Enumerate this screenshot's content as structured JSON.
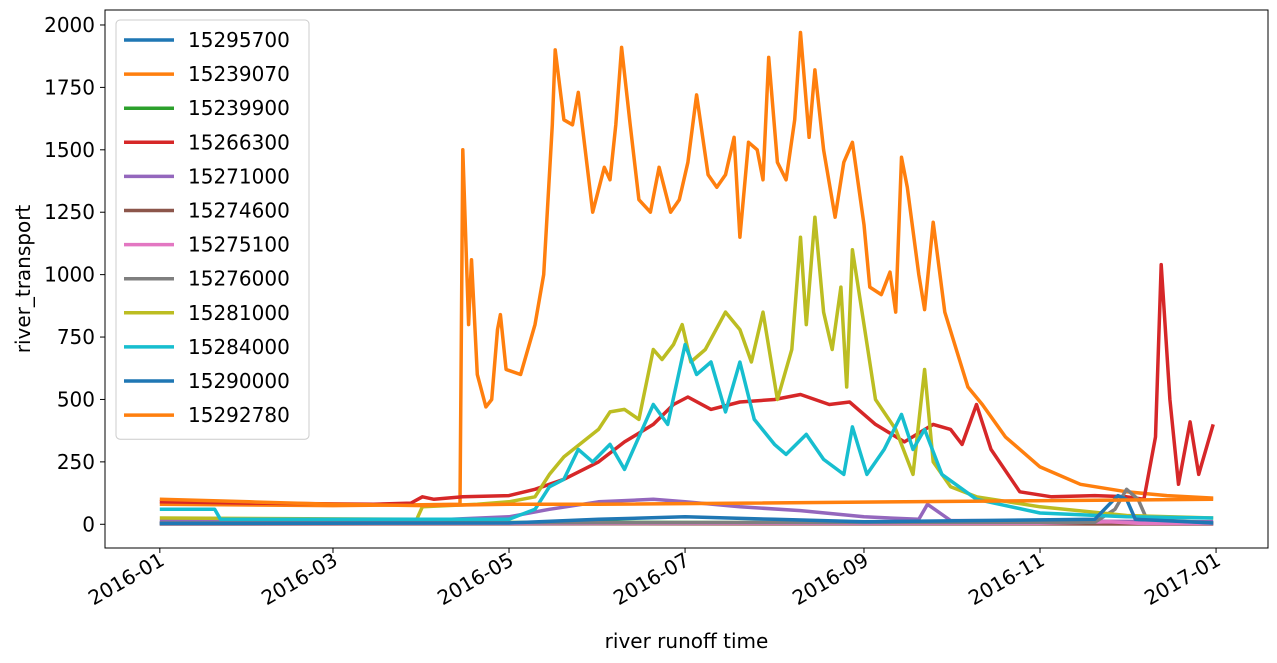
{
  "chart_data": {
    "type": "line",
    "xlabel": "river runoff time",
    "ylabel": "river_transport",
    "x_ticks": [
      "2016-01",
      "2016-03",
      "2016-05",
      "2016-07",
      "2016-09",
      "2016-11",
      "2017-01"
    ],
    "y_ticks": [
      "0",
      "250",
      "500",
      "750",
      "1000",
      "1250",
      "1500",
      "1750",
      "2000"
    ],
    "xlim": [
      "2015-12-13",
      "2017-01-19"
    ],
    "ylim": [
      -95,
      2060
    ],
    "legend_position": "upper-left",
    "grid": false,
    "series": [
      {
        "name": "15295700",
        "color": "#1f77b4",
        "points": [
          [
            "2016-01-01",
            2
          ],
          [
            "2016-04-01",
            2
          ],
          [
            "2016-06-01",
            3
          ],
          [
            "2016-09-01",
            3
          ],
          [
            "2016-12-31",
            2
          ]
        ]
      },
      {
        "name": "15239070",
        "color": "#ff7f0e",
        "points": [
          [
            "2016-01-01",
            80
          ],
          [
            "2016-03-01",
            75
          ],
          [
            "2016-04-01",
            78
          ],
          [
            "2016-04-14",
            80
          ],
          [
            "2016-04-15",
            1500
          ],
          [
            "2016-04-17",
            800
          ],
          [
            "2016-04-18",
            1060
          ],
          [
            "2016-04-20",
            600
          ],
          [
            "2016-04-23",
            470
          ],
          [
            "2016-04-25",
            500
          ],
          [
            "2016-04-27",
            780
          ],
          [
            "2016-04-28",
            840
          ],
          [
            "2016-04-30",
            620
          ],
          [
            "2016-05-05",
            600
          ],
          [
            "2016-05-10",
            800
          ],
          [
            "2016-05-13",
            1000
          ],
          [
            "2016-05-16",
            1600
          ],
          [
            "2016-05-17",
            1900
          ],
          [
            "2016-05-20",
            1620
          ],
          [
            "2016-05-23",
            1600
          ],
          [
            "2016-05-25",
            1730
          ],
          [
            "2016-05-30",
            1250
          ],
          [
            "2016-06-03",
            1430
          ],
          [
            "2016-06-05",
            1380
          ],
          [
            "2016-06-07",
            1600
          ],
          [
            "2016-06-09",
            1910
          ],
          [
            "2016-06-12",
            1600
          ],
          [
            "2016-06-15",
            1300
          ],
          [
            "2016-06-19",
            1250
          ],
          [
            "2016-06-22",
            1430
          ],
          [
            "2016-06-26",
            1250
          ],
          [
            "2016-06-29",
            1300
          ],
          [
            "2016-07-02",
            1450
          ],
          [
            "2016-07-05",
            1720
          ],
          [
            "2016-07-09",
            1400
          ],
          [
            "2016-07-12",
            1350
          ],
          [
            "2016-07-15",
            1400
          ],
          [
            "2016-07-18",
            1550
          ],
          [
            "2016-07-20",
            1150
          ],
          [
            "2016-07-23",
            1530
          ],
          [
            "2016-07-26",
            1500
          ],
          [
            "2016-07-28",
            1380
          ],
          [
            "2016-07-30",
            1870
          ],
          [
            "2016-08-02",
            1450
          ],
          [
            "2016-08-05",
            1380
          ],
          [
            "2016-08-08",
            1620
          ],
          [
            "2016-08-10",
            1970
          ],
          [
            "2016-08-13",
            1550
          ],
          [
            "2016-08-15",
            1820
          ],
          [
            "2016-08-18",
            1500
          ],
          [
            "2016-08-22",
            1230
          ],
          [
            "2016-08-25",
            1450
          ],
          [
            "2016-08-28",
            1530
          ],
          [
            "2016-09-01",
            1200
          ],
          [
            "2016-09-03",
            950
          ],
          [
            "2016-09-07",
            920
          ],
          [
            "2016-09-10",
            1010
          ],
          [
            "2016-09-12",
            850
          ],
          [
            "2016-09-14",
            1470
          ],
          [
            "2016-09-16",
            1350
          ],
          [
            "2016-09-20",
            1000
          ],
          [
            "2016-09-22",
            860
          ],
          [
            "2016-09-25",
            1210
          ],
          [
            "2016-09-29",
            850
          ],
          [
            "2016-10-03",
            700
          ],
          [
            "2016-10-07",
            550
          ],
          [
            "2016-10-12",
            480
          ],
          [
            "2016-10-20",
            350
          ],
          [
            "2016-11-01",
            230
          ],
          [
            "2016-11-15",
            160
          ],
          [
            "2016-12-01",
            130
          ],
          [
            "2016-12-15",
            115
          ],
          [
            "2016-12-31",
            105
          ]
        ]
      },
      {
        "name": "15239900",
        "color": "#2ca02c",
        "points": [
          [
            "2016-01-01",
            5
          ],
          [
            "2016-06-01",
            8
          ],
          [
            "2016-09-01",
            6
          ],
          [
            "2016-12-31",
            5
          ]
        ]
      },
      {
        "name": "15266300",
        "color": "#d62728",
        "points": [
          [
            "2016-01-01",
            90
          ],
          [
            "2016-02-01",
            85
          ],
          [
            "2016-03-15",
            80
          ],
          [
            "2016-03-28",
            85
          ],
          [
            "2016-04-01",
            110
          ],
          [
            "2016-04-05",
            100
          ],
          [
            "2016-04-15",
            110
          ],
          [
            "2016-05-01",
            115
          ],
          [
            "2016-05-10",
            140
          ],
          [
            "2016-05-20",
            180
          ],
          [
            "2016-06-01",
            250
          ],
          [
            "2016-06-10",
            330
          ],
          [
            "2016-06-20",
            400
          ],
          [
            "2016-06-27",
            480
          ],
          [
            "2016-07-02",
            510
          ],
          [
            "2016-07-10",
            460
          ],
          [
            "2016-07-20",
            490
          ],
          [
            "2016-08-01",
            500
          ],
          [
            "2016-08-10",
            520
          ],
          [
            "2016-08-20",
            480
          ],
          [
            "2016-08-27",
            490
          ],
          [
            "2016-09-05",
            400
          ],
          [
            "2016-09-15",
            330
          ],
          [
            "2016-09-25",
            400
          ],
          [
            "2016-10-01",
            380
          ],
          [
            "2016-10-05",
            320
          ],
          [
            "2016-10-10",
            480
          ],
          [
            "2016-10-15",
            300
          ],
          [
            "2016-10-25",
            130
          ],
          [
            "2016-11-05",
            110
          ],
          [
            "2016-11-20",
            115
          ],
          [
            "2016-12-01",
            110
          ],
          [
            "2016-12-07",
            100
          ],
          [
            "2016-12-11",
            350
          ],
          [
            "2016-12-13",
            1040
          ],
          [
            "2016-12-16",
            500
          ],
          [
            "2016-12-19",
            160
          ],
          [
            "2016-12-23",
            410
          ],
          [
            "2016-12-26",
            200
          ],
          [
            "2016-12-31",
            400
          ]
        ]
      },
      {
        "name": "15271000",
        "color": "#9467bd",
        "points": [
          [
            "2016-01-01",
            12
          ],
          [
            "2016-04-01",
            15
          ],
          [
            "2016-05-01",
            30
          ],
          [
            "2016-05-15",
            60
          ],
          [
            "2016-06-01",
            90
          ],
          [
            "2016-06-20",
            100
          ],
          [
            "2016-07-01",
            90
          ],
          [
            "2016-07-20",
            70
          ],
          [
            "2016-08-10",
            55
          ],
          [
            "2016-09-01",
            30
          ],
          [
            "2016-09-20",
            20
          ],
          [
            "2016-09-23",
            80
          ],
          [
            "2016-10-01",
            15
          ],
          [
            "2016-12-31",
            10
          ]
        ]
      },
      {
        "name": "15274600",
        "color": "#8c564b",
        "points": [
          [
            "2016-01-01",
            1
          ],
          [
            "2016-06-01",
            2
          ],
          [
            "2016-12-31",
            1
          ]
        ]
      },
      {
        "name": "15275100",
        "color": "#e377c2",
        "points": [
          [
            "2016-01-01",
            3
          ],
          [
            "2016-06-01",
            4
          ],
          [
            "2016-11-01",
            4
          ],
          [
            "2016-11-25",
            10
          ],
          [
            "2016-12-05",
            4
          ],
          [
            "2016-12-31",
            3
          ]
        ]
      },
      {
        "name": "15276000",
        "color": "#7f7f7f",
        "points": [
          [
            "2016-01-01",
            5
          ],
          [
            "2016-11-20",
            8
          ],
          [
            "2016-11-27",
            60
          ],
          [
            "2016-12-01",
            140
          ],
          [
            "2016-12-05",
            100
          ],
          [
            "2016-12-08",
            20
          ],
          [
            "2016-12-31",
            5
          ]
        ]
      },
      {
        "name": "15281000",
        "color": "#bcbd22",
        "points": [
          [
            "2016-01-01",
            25
          ],
          [
            "2016-03-30",
            20
          ],
          [
            "2016-04-01",
            70
          ],
          [
            "2016-04-20",
            80
          ],
          [
            "2016-05-01",
            90
          ],
          [
            "2016-05-10",
            110
          ],
          [
            "2016-05-15",
            200
          ],
          [
            "2016-05-20",
            270
          ],
          [
            "2016-06-01",
            380
          ],
          [
            "2016-06-05",
            450
          ],
          [
            "2016-06-10",
            460
          ],
          [
            "2016-06-15",
            420
          ],
          [
            "2016-06-20",
            700
          ],
          [
            "2016-06-23",
            660
          ],
          [
            "2016-06-27",
            720
          ],
          [
            "2016-06-30",
            800
          ],
          [
            "2016-07-03",
            650
          ],
          [
            "2016-07-08",
            700
          ],
          [
            "2016-07-15",
            850
          ],
          [
            "2016-07-20",
            780
          ],
          [
            "2016-07-24",
            650
          ],
          [
            "2016-07-28",
            850
          ],
          [
            "2016-08-02",
            500
          ],
          [
            "2016-08-07",
            700
          ],
          [
            "2016-08-10",
            1150
          ],
          [
            "2016-08-12",
            800
          ],
          [
            "2016-08-15",
            1230
          ],
          [
            "2016-08-18",
            850
          ],
          [
            "2016-08-21",
            700
          ],
          [
            "2016-08-24",
            950
          ],
          [
            "2016-08-26",
            550
          ],
          [
            "2016-08-28",
            1100
          ],
          [
            "2016-09-01",
            800
          ],
          [
            "2016-09-05",
            500
          ],
          [
            "2016-09-12",
            380
          ],
          [
            "2016-09-18",
            200
          ],
          [
            "2016-09-22",
            620
          ],
          [
            "2016-09-25",
            250
          ],
          [
            "2016-10-01",
            150
          ],
          [
            "2016-10-10",
            110
          ],
          [
            "2016-11-01",
            70
          ],
          [
            "2016-12-01",
            35
          ],
          [
            "2016-12-31",
            25
          ]
        ]
      },
      {
        "name": "15284000",
        "color": "#17becf",
        "points": [
          [
            "2016-01-01",
            60
          ],
          [
            "2016-01-20",
            60
          ],
          [
            "2016-01-22",
            20
          ],
          [
            "2016-05-01",
            20
          ],
          [
            "2016-05-10",
            60
          ],
          [
            "2016-05-15",
            150
          ],
          [
            "2016-05-20",
            180
          ],
          [
            "2016-05-25",
            300
          ],
          [
            "2016-05-30",
            250
          ],
          [
            "2016-06-05",
            320
          ],
          [
            "2016-06-10",
            220
          ],
          [
            "2016-06-15",
            350
          ],
          [
            "2016-06-20",
            480
          ],
          [
            "2016-06-25",
            400
          ],
          [
            "2016-07-01",
            720
          ],
          [
            "2016-07-05",
            600
          ],
          [
            "2016-07-10",
            650
          ],
          [
            "2016-07-15",
            450
          ],
          [
            "2016-07-20",
            650
          ],
          [
            "2016-07-25",
            420
          ],
          [
            "2016-08-01",
            320
          ],
          [
            "2016-08-05",
            280
          ],
          [
            "2016-08-12",
            360
          ],
          [
            "2016-08-18",
            260
          ],
          [
            "2016-08-25",
            200
          ],
          [
            "2016-08-28",
            390
          ],
          [
            "2016-09-02",
            200
          ],
          [
            "2016-09-08",
            300
          ],
          [
            "2016-09-14",
            440
          ],
          [
            "2016-09-18",
            300
          ],
          [
            "2016-09-22",
            380
          ],
          [
            "2016-09-28",
            200
          ],
          [
            "2016-10-10",
            100
          ],
          [
            "2016-11-01",
            45
          ],
          [
            "2016-12-01",
            30
          ],
          [
            "2016-12-31",
            25
          ]
        ]
      },
      {
        "name": "15290000",
        "color": "#1f77b4",
        "points": [
          [
            "2016-01-01",
            3
          ],
          [
            "2016-05-01",
            5
          ],
          [
            "2016-06-01",
            20
          ],
          [
            "2016-07-01",
            30
          ],
          [
            "2016-08-01",
            20
          ],
          [
            "2016-09-01",
            10
          ],
          [
            "2016-11-20",
            20
          ],
          [
            "2016-11-25",
            80
          ],
          [
            "2016-11-28",
            115
          ],
          [
            "2016-12-01",
            100
          ],
          [
            "2016-12-04",
            20
          ],
          [
            "2016-12-31",
            5
          ]
        ]
      },
      {
        "name": "15292780",
        "color": "#ff7f0e",
        "points": [
          [
            "2016-01-01",
            100
          ],
          [
            "2016-02-01",
            90
          ],
          [
            "2016-03-01",
            80
          ],
          [
            "2016-04-01",
            75
          ],
          [
            "2016-05-01",
            80
          ],
          [
            "2016-06-01",
            80
          ],
          [
            "2016-12-31",
            100
          ]
        ]
      }
    ]
  }
}
